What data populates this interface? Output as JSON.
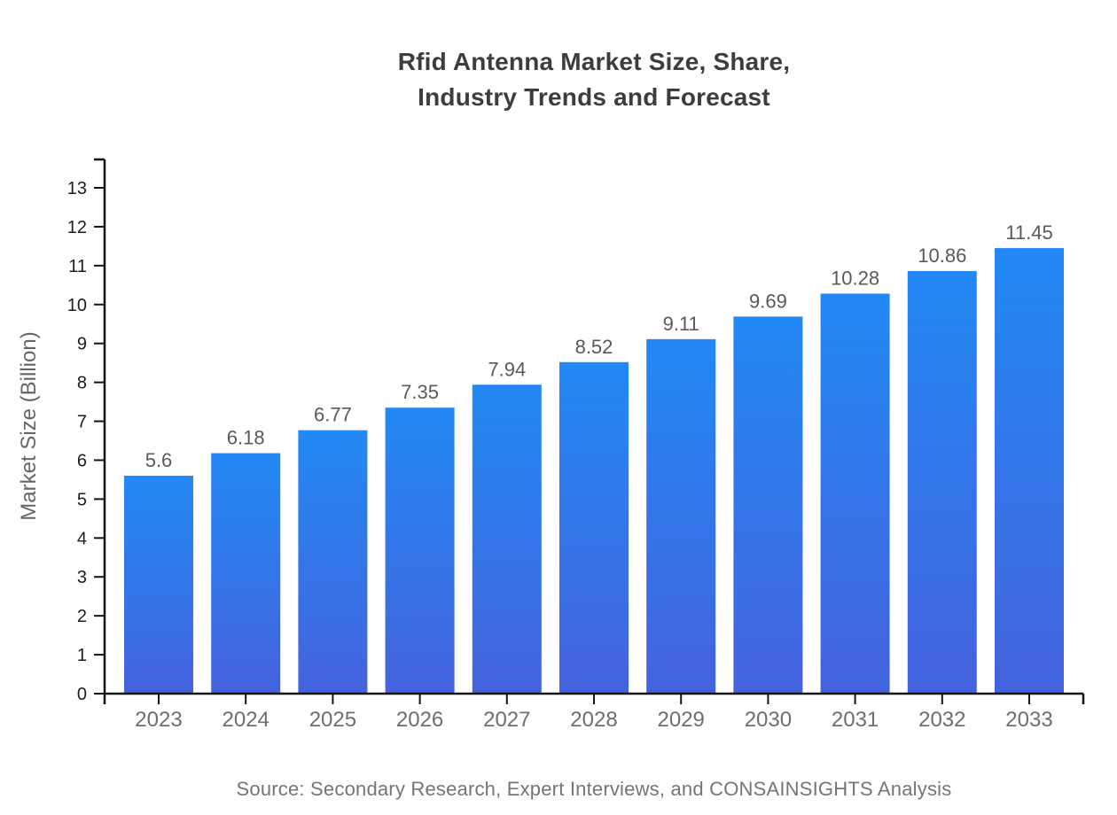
{
  "header": {
    "title_lines": [
      "Rfid Antenna Market Size, Share,",
      "Industry Trends and Forecast"
    ]
  },
  "footer": {
    "source": "Source: Secondary Research, Expert Interviews, and CONSAINSIGHTS Analysis"
  },
  "chart_data": {
    "type": "bar",
    "title": "Rfid Antenna Market Size, Share, Industry Trends and Forecast",
    "categories": [
      "2023",
      "2024",
      "2025",
      "2026",
      "2027",
      "2028",
      "2029",
      "2030",
      "2031",
      "2032",
      "2033"
    ],
    "values": [
      5.6,
      6.18,
      6.77,
      7.35,
      7.94,
      8.52,
      9.11,
      9.69,
      10.28,
      10.86,
      11.45
    ],
    "value_labels": [
      "5.6",
      "6.18",
      "6.77",
      "7.35",
      "7.94",
      "8.52",
      "9.11",
      "9.69",
      "10.28",
      "10.86",
      "11.45"
    ],
    "xlabel": "",
    "ylabel": "Market Size (Billion)",
    "ylim": [
      0,
      13
    ],
    "yticks": [
      0,
      1,
      2,
      3,
      4,
      5,
      6,
      7,
      8,
      9,
      10,
      11,
      12,
      13
    ],
    "grid": false,
    "legend": null
  },
  "colors": {
    "bar_gradient_top": "#2289F4",
    "bar_gradient_bottom": "#4562DD",
    "axis": "#141414",
    "title_text": "#3d3d3d",
    "ytick_text": "#1c1c1c",
    "xtick_text": "#6e6e6e",
    "value_label_text": "#595959",
    "axis_title_text": "#666666",
    "source_text": "#757575",
    "background": "#ffffff"
  }
}
